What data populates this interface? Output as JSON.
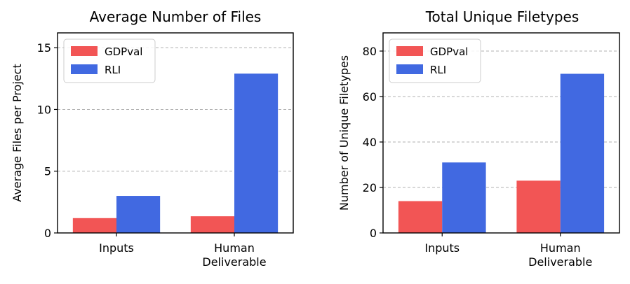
{
  "colors": {
    "gdpval": "#F25555",
    "rli": "#4169E1",
    "grid": "#b0b0b0",
    "axis": "#000000"
  },
  "chart_data": [
    {
      "type": "bar",
      "title": "Average Number of Files",
      "xlabel": "",
      "ylabel": "Average Files per Project",
      "categories": [
        [
          "Inputs"
        ],
        [
          "Human",
          "Deliverable"
        ]
      ],
      "series": [
        {
          "name": "GDPval",
          "values": [
            1.2,
            1.35
          ],
          "color": "#F25555"
        },
        {
          "name": "RLI",
          "values": [
            3.0,
            12.9
          ],
          "color": "#4169E1"
        }
      ],
      "ylim": [
        0,
        16.2
      ],
      "yticks": [
        0,
        5,
        10,
        15
      ],
      "grid": true,
      "legend": "top-left"
    },
    {
      "type": "bar",
      "title": "Total Unique Filetypes",
      "xlabel": "",
      "ylabel": "Number of Unique Filetypes",
      "categories": [
        [
          "Inputs"
        ],
        [
          "Human",
          "Deliverable"
        ]
      ],
      "series": [
        {
          "name": "GDPval",
          "values": [
            14,
            23
          ],
          "color": "#F25555"
        },
        {
          "name": "RLI",
          "values": [
            31,
            70
          ],
          "color": "#4169E1"
        }
      ],
      "ylim": [
        0,
        88
      ],
      "yticks": [
        0,
        20,
        40,
        60,
        80
      ],
      "grid": true,
      "legend": "top-left"
    }
  ]
}
